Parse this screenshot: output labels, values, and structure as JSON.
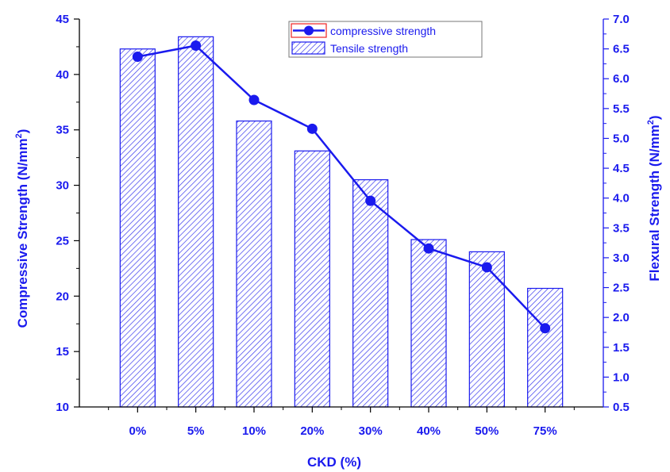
{
  "chart_data": {
    "type": "bar",
    "categories": [
      "0%",
      "5%",
      "10%",
      "20%",
      "30%",
      "40%",
      "50%",
      "75%"
    ],
    "xlabel": "CKD (%)",
    "ylabel_left": "Compressive Strength (N/mm",
    "ylabel_right": "Flexural Strength (N/mm",
    "ylabel_superscript": "2",
    "ylabel_close": ")",
    "ylim_left": [
      10,
      45
    ],
    "yticks_left": [
      "10",
      "15",
      "20",
      "25",
      "30",
      "35",
      "40",
      "45"
    ],
    "ylim_right": [
      0.5,
      7.0
    ],
    "yticks_right": [
      "0.5",
      "1.0",
      "1.5",
      "2.0",
      "2.5",
      "3.0",
      "3.5",
      "4.0",
      "4.5",
      "5.0",
      "5.5",
      "6.0",
      "6.5",
      "7.0"
    ],
    "series": [
      {
        "name": "compressive strength",
        "kind": "line",
        "axis": "left",
        "values": [
          41.6,
          42.6,
          37.7,
          35.1,
          28.6,
          24.3,
          22.6,
          17.1
        ]
      },
      {
        "name": "Tensile strength",
        "kind": "bar",
        "axis": "left",
        "values": [
          42.3,
          43.4,
          35.8,
          33.1,
          30.5,
          25.1,
          24.0,
          20.7
        ]
      }
    ],
    "legend_position": "top-right",
    "grid": false,
    "colors": {
      "axis": "#000000",
      "text": "#1a1aee",
      "line": "#1a1aee",
      "bar_hatch": "#3a3aee",
      "legend_box_border": "#ee2222"
    }
  }
}
